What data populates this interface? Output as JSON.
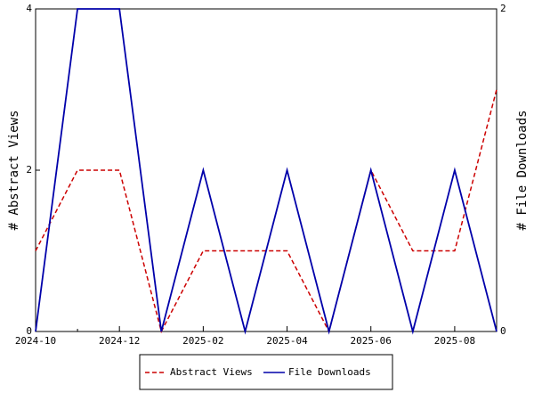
{
  "chart_data": {
    "type": "line",
    "x": [
      "2024-10",
      null,
      "2024-12",
      null,
      "2025-02",
      null,
      "2025-04",
      null,
      "2025-06",
      null,
      "2025-08",
      null
    ],
    "series": [
      {
        "name": "Abstract Views",
        "color": "#cc0000",
        "dash": true,
        "values": [
          1,
          2,
          2,
          0,
          1,
          1,
          1,
          0,
          2,
          1,
          1,
          3
        ]
      },
      {
        "name": "File Downloads",
        "color": "#0000aa",
        "axis": "y2",
        "values": [
          0,
          2,
          2,
          0,
          1,
          0,
          1,
          0,
          1,
          0,
          1,
          0
        ]
      }
    ],
    "ylabel": "# Abstract Views",
    "y2label": "# File Downloads",
    "ylim": [
      0,
      4
    ],
    "yticks": [
      0,
      2,
      4
    ],
    "y2lim": [
      0,
      2
    ],
    "y2ticks": [
      0,
      2
    ],
    "legend": "bottom"
  }
}
